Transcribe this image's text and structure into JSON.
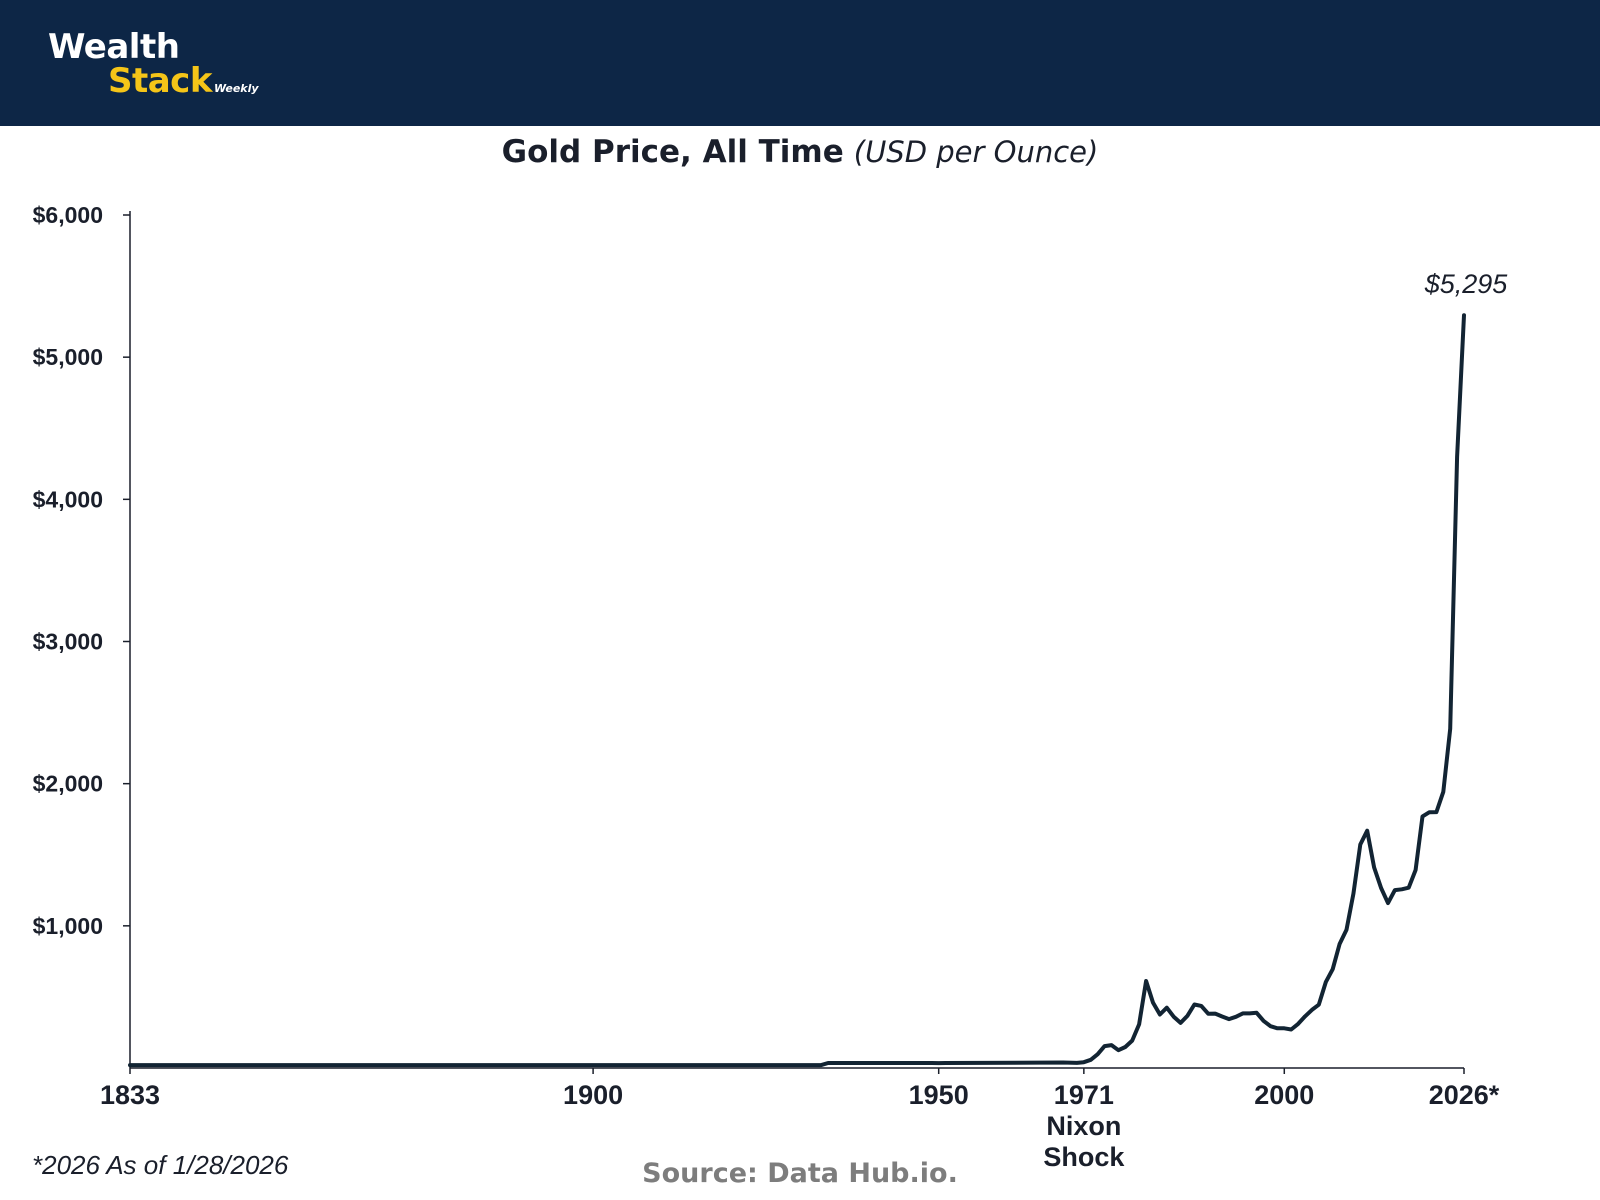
{
  "header": {
    "logo_line1": "Wealth",
    "logo_line2": "Stack",
    "logo_suffix": "Weekly",
    "background_color": "#0d2646",
    "accent_color": "#f5c518"
  },
  "footer": {
    "footnote": "*2026 As of 1/28/2026",
    "source": "Source: Data Hub.io."
  },
  "chart_data": {
    "type": "line",
    "title": "Gold Price, All Time",
    "subtitle": "(USD per Ounce)",
    "xlabel": "",
    "ylabel": "",
    "xlim": [
      1833,
      2026
    ],
    "ylim": [
      0,
      6000
    ],
    "grid": false,
    "line_color": "#122433",
    "y_ticks": [
      {
        "value": 1000,
        "label": "$1,000"
      },
      {
        "value": 2000,
        "label": "$2,000"
      },
      {
        "value": 3000,
        "label": "$3,000"
      },
      {
        "value": 4000,
        "label": "$4,000"
      },
      {
        "value": 5000,
        "label": "$5,000"
      },
      {
        "value": 6000,
        "label": "$6,000"
      }
    ],
    "x_ticks": [
      {
        "value": 1833,
        "label": "1833"
      },
      {
        "value": 1900,
        "label": "1900"
      },
      {
        "value": 1950,
        "label": "1950"
      },
      {
        "value": 1971,
        "label": "1971",
        "sublabel": "Nixon Shock"
      },
      {
        "value": 2000,
        "label": "2000"
      },
      {
        "value": 2026,
        "label": "2026*"
      }
    ],
    "annotation": {
      "x": 2026,
      "y": 5295,
      "text": "$5,295"
    },
    "series": [
      {
        "name": "Gold price",
        "points": [
          [
            1833,
            20.65
          ],
          [
            1933,
            20.67
          ],
          [
            1934,
            35
          ],
          [
            1949,
            35
          ],
          [
            1950,
            34.7
          ],
          [
            1951,
            35
          ],
          [
            1968,
            39
          ],
          [
            1970,
            36
          ],
          [
            1971,
            41
          ],
          [
            1972,
            58
          ],
          [
            1973,
            97
          ],
          [
            1974,
            154
          ],
          [
            1975,
            161
          ],
          [
            1976,
            125
          ],
          [
            1977,
            148
          ],
          [
            1978,
            193
          ],
          [
            1979,
            307
          ],
          [
            1980,
            612
          ],
          [
            1981,
            460
          ],
          [
            1982,
            376
          ],
          [
            1983,
            424
          ],
          [
            1984,
            361
          ],
          [
            1985,
            317
          ],
          [
            1986,
            368
          ],
          [
            1987,
            447
          ],
          [
            1988,
            437
          ],
          [
            1989,
            381
          ],
          [
            1990,
            383
          ],
          [
            1991,
            362
          ],
          [
            1992,
            344
          ],
          [
            1993,
            360
          ],
          [
            1994,
            384
          ],
          [
            1995,
            384
          ],
          [
            1996,
            388
          ],
          [
            1997,
            331
          ],
          [
            1998,
            294
          ],
          [
            1999,
            279
          ],
          [
            2000,
            279
          ],
          [
            2001,
            271
          ],
          [
            2002,
            310
          ],
          [
            2003,
            363
          ],
          [
            2004,
            409
          ],
          [
            2005,
            445
          ],
          [
            2006,
            604
          ],
          [
            2007,
            695
          ],
          [
            2008,
            872
          ],
          [
            2009,
            972
          ],
          [
            2010,
            1225
          ],
          [
            2011,
            1572
          ],
          [
            2012,
            1669
          ],
          [
            2013,
            1411
          ],
          [
            2014,
            1266
          ],
          [
            2015,
            1160
          ],
          [
            2016,
            1251
          ],
          [
            2017,
            1257
          ],
          [
            2018,
            1268
          ],
          [
            2019,
            1393
          ],
          [
            2020,
            1770
          ],
          [
            2021,
            1799
          ],
          [
            2022,
            1800
          ],
          [
            2023,
            1943
          ],
          [
            2024,
            2386
          ],
          [
            2025,
            4300
          ],
          [
            2026,
            5295
          ]
        ]
      }
    ]
  }
}
